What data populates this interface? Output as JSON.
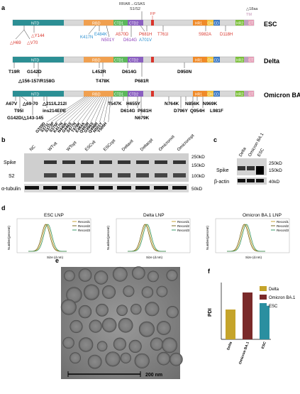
{
  "panel_labels": {
    "a": "a",
    "b": "b",
    "c": "c",
    "d": "d",
    "e": "e",
    "f": "f"
  },
  "panel_a": {
    "top_annotations": {
      "rrar": "RRAR→GSAS",
      "s1s2": "S1/S2",
      "fp": "FP",
      "del18": "△18aa",
      "tm": "TM"
    },
    "domains": {
      "ntd": "NTD",
      "rbd": "RBD",
      "ctd1": "CTD1",
      "ctd2": "CTD2",
      "hr1": "HR1",
      "ch": "CH",
      "cd": "CD",
      "hr2": "HR2",
      "ct": "CT"
    },
    "variant_names": {
      "esc": "ESC",
      "delta": "Delta",
      "omicron": "Omicron BA.1"
    },
    "esc_mutations": {
      "h69": "△H69",
      "v70": "△V70",
      "y144": "△Y144",
      "k417n": "K417N",
      "e484k": "E484K",
      "n501y": "N501Y",
      "a570d": "A570D",
      "d614g": "D614G",
      "a701v": "A701V",
      "p681h": "P681H",
      "t761i": "T761I",
      "s982a": "S982A",
      "d118h": "D118H"
    },
    "delta_mutations": {
      "t19r": "T19R",
      "g142d": "G142D",
      "del156": "△156-157/R158G",
      "l452r": "L452R",
      "t478k": "T478K",
      "d614g": "D614G",
      "p681r": "P681R",
      "d950n": "D950N"
    },
    "omicron_mutations": {
      "a67v": "A67V",
      "del69": "△69-70",
      "t95i": "T95I",
      "g142d": "G142D/△143-145",
      "del211": "△211/L212I",
      "ins214": "ins214EPE",
      "t547k": "T547K",
      "d614g": "D614G",
      "p681h": "P681H",
      "h655y": "H655Y",
      "n679k": "N679K",
      "n764k": "N764K",
      "n856k": "N856K",
      "d796y": "D796Y",
      "q954h": "Q954H",
      "n969k": "N969K",
      "l981f": "L981F",
      "rbd_fan": [
        "G339D",
        "S371L",
        "S373P",
        "S375F",
        "K417N",
        "N440K",
        "G446S",
        "S477N",
        "T478K",
        "E484A",
        "Q493R",
        "G496S",
        "Q498R",
        "N501Y",
        "Y505H"
      ]
    },
    "colors": {
      "ntd": "#2c8f94",
      "rbd": "#f0a050",
      "ctd1": "#5cb85c",
      "ctd2": "#8a5fc0",
      "hr1": "#f08a28",
      "ch": "#f2c23a",
      "cd": "#3a78c4",
      "hr2": "#7bbf3a",
      "ct": "#e6a0b8",
      "tm": "#c0a0c0",
      "fp": "#d9342b",
      "red": "#d9342b",
      "blue": "#2a8fd0",
      "purple": "#8a3ab8"
    }
  },
  "panel_b": {
    "lanes": [
      "NC",
      "WTvit",
      "WTopt",
      "ESCvit",
      "ESCopt",
      "Deltavit",
      "Deltaopt",
      "Omicronvit",
      "Omicronopt"
    ],
    "row_labels": {
      "spike": "Spike",
      "s2": "S2",
      "tubulin": "α-tubulin"
    },
    "markers": {
      "m250": "250kD",
      "m150": "150kD",
      "m100": "100kD",
      "m50": "50kD"
    }
  },
  "panel_c": {
    "lanes": [
      "Delta",
      "Omicron BA.1",
      "ESC"
    ],
    "row_labels": {
      "spike": "Spike",
      "actin": "β-actin"
    },
    "markers": {
      "m250": "250kD",
      "m150": "150kD",
      "m40": "40kD"
    }
  },
  "panel_d": {
    "titles": {
      "esc": "ESC LNP",
      "delta": "Delta LNP",
      "omicron": "Omicron BA.1 LNP"
    },
    "ylabel": "Number(percent)",
    "xlabel": "Size (d.nm)",
    "legend": [
      "Record1",
      "Record2",
      "Record3"
    ],
    "legend_colors": [
      "#c8a43a",
      "#7a6a20",
      "#3a9a6a"
    ]
  },
  "panel_e": {
    "scalebar": "200 nm"
  },
  "chart_data": {
    "type": "bar",
    "categories": [
      "Delta",
      "Omicron BA.1",
      "ESC"
    ],
    "values": [
      0.063,
      0.099,
      0.071
    ],
    "ylabel": "PDI",
    "xlabel": "",
    "ylim": [
      0,
      0.12
    ],
    "legend": [
      "Delta",
      "Omicron BA.1",
      "ESC"
    ],
    "colors": [
      "#c5a42a",
      "#7a2a2a",
      "#2a8fa0"
    ]
  }
}
